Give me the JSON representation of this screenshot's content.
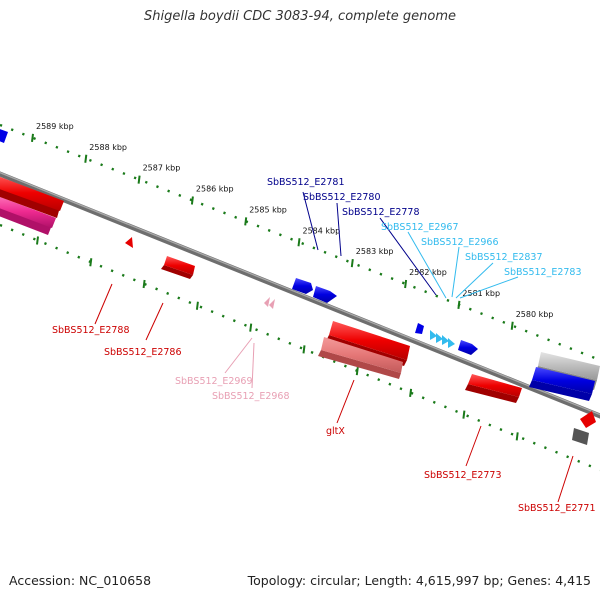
{
  "title": "Shigella boydii CDC 3083-94, complete genome",
  "footer": {
    "accession": "Accession: NC_010658",
    "summary": "Topology: circular; Length: 4,615,997 bp; Genes: 4,415"
  },
  "colors": {
    "forward_strand": "#0000e6",
    "reverse_strand": "#e60000",
    "pseudo_pink": "#e8a0b4",
    "light_blue": "#33bbee",
    "backbone": "#777777",
    "ticks": "#1a7a1a"
  },
  "ruler": {
    "ticks": [
      "2589 kbp",
      "2588 kbp",
      "2587 kbp",
      "2586 kbp",
      "2585 kbp",
      "2584 kbp",
      "2583 kbp",
      "2582 kbp",
      "2581 kbp",
      "2580 kbp"
    ]
  },
  "labels": {
    "forward": [
      "SbBS512_E2781",
      "SbBS512_E2780",
      "SbBS512_E2778"
    ],
    "forward_light": [
      "SbBS512_E2967",
      "SbBS512_E2966",
      "SbBS512_E2837",
      "SbBS512_E2783"
    ],
    "reverse": [
      "SbBS512_E2788",
      "SbBS512_E2786",
      "gltX",
      "SbBS512_E2773",
      "SbBS512_E2771"
    ],
    "reverse_pink": [
      "SbBS512_E2969",
      "SbBS512_E2968"
    ]
  }
}
